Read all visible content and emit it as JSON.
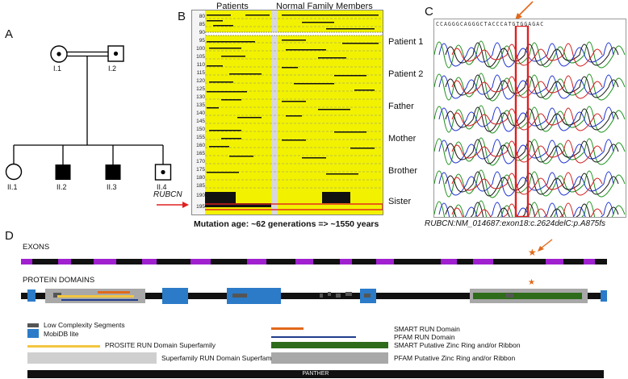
{
  "panels": {
    "a": {
      "letter": "A",
      "parents": [
        "I.1",
        "I.2"
      ],
      "children": [
        "II.1",
        "II.2",
        "II.3",
        "II.4"
      ]
    },
    "b": {
      "letter": "B",
      "col_patients": "Patients",
      "col_normals": "Normal Family Members",
      "gene_label": "RUBCN",
      "y_ticks": [
        "80",
        "85",
        "90",
        "95",
        "100",
        "105",
        "110",
        "115",
        "120",
        "125",
        "130",
        "135",
        "140",
        "145",
        "150",
        "155",
        "160",
        "165",
        "170",
        "175",
        "180",
        "185",
        "190",
        "195"
      ],
      "mutation_age": "Mutation age: ~62 generations => ~1550 years"
    },
    "c": {
      "letter": "C",
      "sequence": "CCAGGGCAGGGCTACCCATGTGGAGAC",
      "rows": [
        "Patient 1",
        "Patient 2",
        "Father",
        "Mother",
        "Brother",
        "Sister"
      ],
      "variant": "RUBCN:NM_014687:exon18:c.2624delC:p.A875fs"
    },
    "d": {
      "letter": "D",
      "exons_label": "EXONS",
      "domains_label": "PROTEIN DOMAINS",
      "legend": {
        "low_complexity": "Low Complexity Segments",
        "mobidb": "MobiDB lite",
        "prosite": "PROSITE RUN Domain Superfamily",
        "superfamily": "Superfamily RUN Domain Superfamily",
        "smart_run": "SMART RUN Domain",
        "pfam_run": "PFAM RUN Domain",
        "smart_zinc": "SMART Putative Zinc Ring and/or Ribbon",
        "pfam_zinc": "PFAM Putative Zinc Ring and/or Ribbon",
        "panther": "PANTHER"
      }
    }
  },
  "colors": {
    "yellow": "#f2f200",
    "purple": "#a020d0",
    "blue": "#2b7bc8",
    "orange": "#e2691a",
    "navy": "#1f3d8c",
    "green": "#2e6b1a",
    "gray": "#a8a8a8",
    "darkgray": "#555555",
    "red": "#e02020"
  }
}
